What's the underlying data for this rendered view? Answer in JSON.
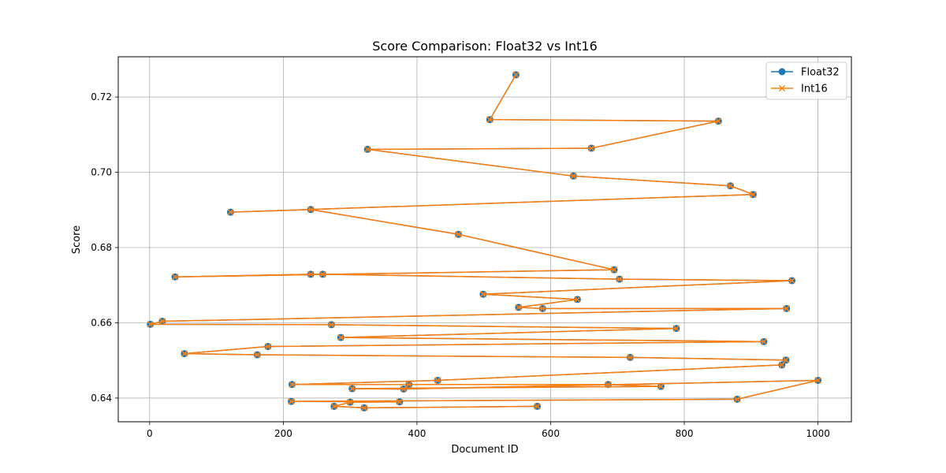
{
  "chart_data": {
    "type": "line",
    "title": "Score Comparison: Float32 vs Int16",
    "xlabel": "Document ID",
    "ylabel": "Score",
    "xlim": [
      -47,
      1050
    ],
    "ylim": [
      0.6337,
      0.7307
    ],
    "xticks": [
      0,
      200,
      400,
      600,
      800,
      1000
    ],
    "yticks": [
      0.64,
      0.66,
      0.68,
      0.7,
      0.72
    ],
    "ytick_labels": [
      "0.64",
      "0.66",
      "0.68",
      "0.70",
      "0.72"
    ],
    "grid": true,
    "legend_position": "top-right",
    "x": [
      548,
      509,
      851,
      661,
      326,
      634,
      869,
      903,
      121,
      241,
      462,
      695,
      38,
      241,
      259,
      703,
      961,
      499,
      640,
      552,
      588,
      953,
      19,
      1,
      272,
      788,
      286,
      919,
      177,
      52,
      161,
      719,
      952,
      946,
      431,
      213,
      388,
      686,
      765,
      303,
      380,
      1000,
      879,
      212,
      374,
      300,
      276,
      321,
      580
    ],
    "series": [
      {
        "name": "Float32",
        "marker": "circle",
        "color": "#1f77b4",
        "values": [
          0.7259,
          0.714,
          0.7136,
          0.7064,
          0.7061,
          0.699,
          0.6964,
          0.6941,
          0.6894,
          0.6901,
          0.6835,
          0.6741,
          0.6722,
          0.6729,
          0.6729,
          0.6716,
          0.6712,
          0.6676,
          0.6662,
          0.6641,
          0.6638,
          0.6638,
          0.6604,
          0.6596,
          0.6595,
          0.6585,
          0.6561,
          0.655,
          0.6537,
          0.6518,
          0.6515,
          0.6508,
          0.6501,
          0.6488,
          0.6447,
          0.6436,
          0.6436,
          0.6436,
          0.6431,
          0.6425,
          0.6424,
          0.6447,
          0.6397,
          0.6391,
          0.639,
          0.6389,
          0.6378,
          0.6374,
          0.6378
        ]
      },
      {
        "name": "Int16",
        "marker": "x",
        "color": "#ff7f0e",
        "values": [
          0.7259,
          0.714,
          0.7136,
          0.7064,
          0.7061,
          0.699,
          0.6964,
          0.6941,
          0.6894,
          0.6901,
          0.6835,
          0.6741,
          0.6722,
          0.6729,
          0.6729,
          0.6716,
          0.6712,
          0.6676,
          0.6662,
          0.6641,
          0.6638,
          0.6638,
          0.6604,
          0.6596,
          0.6595,
          0.6585,
          0.6561,
          0.655,
          0.6537,
          0.6518,
          0.6515,
          0.6508,
          0.6501,
          0.6488,
          0.6447,
          0.6436,
          0.6436,
          0.6436,
          0.6431,
          0.6425,
          0.6424,
          0.6447,
          0.6397,
          0.6391,
          0.639,
          0.6389,
          0.6378,
          0.6374,
          0.6378
        ]
      }
    ]
  }
}
